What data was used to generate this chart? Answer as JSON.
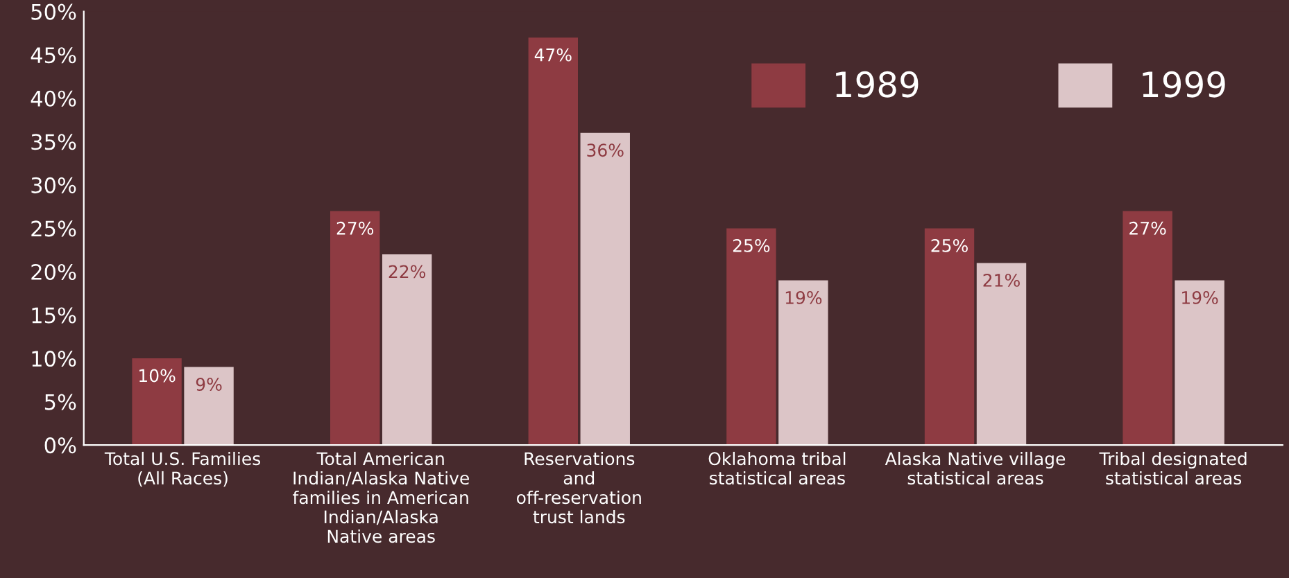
{
  "chart_data": {
    "type": "bar",
    "categories": [
      "Total U.S. Families\n(All Races)",
      "Total American\nIndian/Alaska Native\nfamilies in American\nIndian/Alaska\nNative areas",
      "Reservations\nand\noff-reservation\ntrust lands",
      "Oklahoma tribal\nstatistical areas",
      "Alaska Native village\nstatistical areas",
      "Tribal designated\nstatistical areas"
    ],
    "series": [
      {
        "name": "1989",
        "color": "#8e3b42",
        "values": [
          10,
          27,
          47,
          25,
          25,
          27
        ],
        "value_labels": [
          "10%",
          "27%",
          "47%",
          "25%",
          "25%",
          "27%"
        ]
      },
      {
        "name": "1999",
        "color": "#dcc5c7",
        "values": [
          9,
          22,
          36,
          19,
          21,
          19
        ],
        "value_labels": [
          "9%",
          "22%",
          "36%",
          "19%",
          "21%",
          "19%"
        ]
      }
    ],
    "ylim": [
      0,
      50
    ],
    "yticks": [
      {
        "value": 0,
        "label": "0%"
      },
      {
        "value": 5,
        "label": "5%"
      },
      {
        "value": 10,
        "label": "10%"
      },
      {
        "value": 15,
        "label": "15%"
      },
      {
        "value": 20,
        "label": "20%"
      },
      {
        "value": 25,
        "label": "25%"
      },
      {
        "value": 30,
        "label": "30%"
      },
      {
        "value": 35,
        "label": "35%"
      },
      {
        "value": 40,
        "label": "40%"
      },
      {
        "value": 45,
        "label": "45%"
      },
      {
        "value": 50,
        "label": "50%"
      }
    ],
    "grid": false,
    "legend": "top right"
  }
}
